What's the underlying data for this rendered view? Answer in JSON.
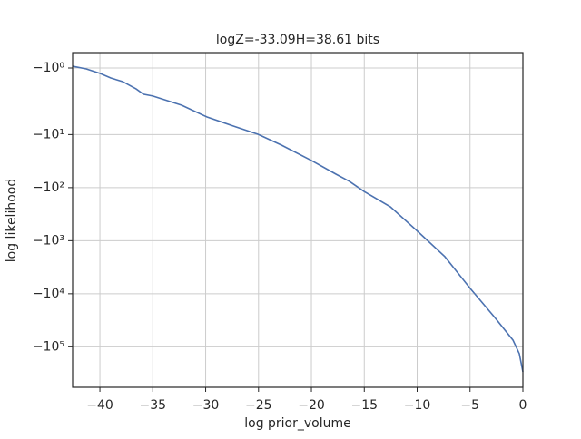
{
  "chart_data": {
    "type": "line",
    "title": "logZ=-33.09H=38.61 bits",
    "x_label": "log prior_volume",
    "y_label": "log likelihood",
    "yscale": "symlog",
    "linthresh": 2,
    "grid": true,
    "xlim": [
      -42.58,
      0
    ],
    "ylim": [
      -0.477,
      -580000
    ],
    "xticks": [
      {
        "value": -40,
        "label": "−40"
      },
      {
        "value": -35,
        "label": "−35"
      },
      {
        "value": -30,
        "label": "−30"
      },
      {
        "value": -25,
        "label": "−25"
      },
      {
        "value": -20,
        "label": "−20"
      },
      {
        "value": -15,
        "label": "−15"
      },
      {
        "value": -10,
        "label": "−10"
      },
      {
        "value": -5,
        "label": "−5"
      },
      0
    ],
    "yticks": [
      {
        "value": -1,
        "label": "−10⁰"
      },
      {
        "value": -10,
        "label": "−10¹"
      },
      {
        "value": -100,
        "label": "−10²"
      },
      {
        "value": -1000,
        "label": "−10³"
      },
      {
        "value": -10000,
        "label": "−10⁴"
      },
      {
        "value": -100000,
        "label": "−10⁵"
      }
    ],
    "x": [
      -42.58,
      -41.29,
      -40.0,
      -38.97,
      -37.85,
      -36.57,
      -35.88,
      -35.0,
      -32.27,
      -29.87,
      -27.12,
      -25.06,
      -22.83,
      -20.0,
      -17.68,
      -16.39,
      -15.02,
      -12.53,
      -9.96,
      -7.38,
      -4.98,
      -2.66,
      -0.94,
      -0.34,
      0
    ],
    "series": [
      {
        "color": "#4c72b0",
        "values": [
          -0.94,
          -1.03,
          -1.18,
          -1.34,
          -1.46,
          -1.71,
          -1.89,
          -1.95,
          -2.8,
          -4.67,
          -7.19,
          -9.86,
          -15.8,
          -30.8,
          -55.7,
          -76.4,
          -118,
          -230,
          -665,
          -2000,
          -7940,
          -28000,
          -74800,
          -135000,
          -296000
        ]
      }
    ]
  }
}
